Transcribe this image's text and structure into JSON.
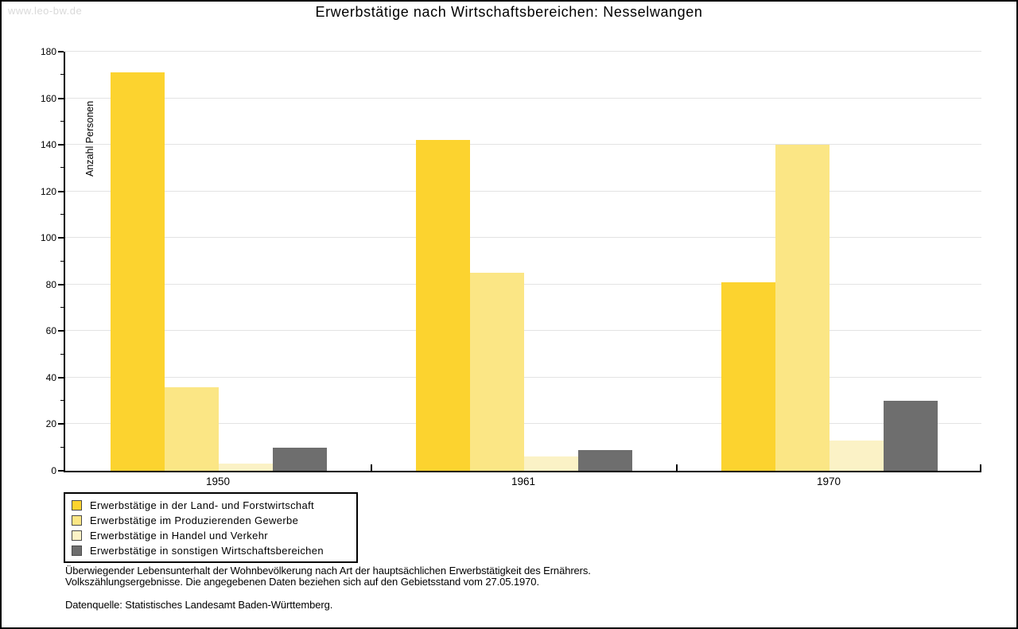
{
  "watermark": "www.leo-bw.de",
  "title": "Erwerbstätige nach Wirtschaftsbereichen: Nesselwangen",
  "chart_data": {
    "type": "bar",
    "categories": [
      "1950",
      "1961",
      "1970"
    ],
    "series": [
      {
        "name": "Erwerbstätige in der Land- und Forstwirtschaft",
        "color": "#fcd32f",
        "values": [
          171,
          142,
          81
        ]
      },
      {
        "name": "Erwerbstätige im Produzierenden Gewerbe",
        "color": "#fbe685",
        "values": [
          36,
          85,
          140
        ]
      },
      {
        "name": "Erwerbstätige in Handel und Verkehr",
        "color": "#fbf2c6",
        "values": [
          3,
          6,
          13
        ]
      },
      {
        "name": "Erwerbstätige in sonstigen Wirtschaftsbereichen",
        "color": "#6e6e6e",
        "values": [
          10,
          9,
          30
        ]
      }
    ],
    "title": "Erwerbstätige nach Wirtschaftsbereichen: Nesselwangen",
    "xlabel": "",
    "ylabel": "Anzahl Personen",
    "ylim": [
      0,
      180
    ],
    "ytick_step": 20,
    "ytick_minor_step": 10,
    "grid": true,
    "legend_position": "bottom-left",
    "grid_color": "#e3e3e3"
  },
  "footer": {
    "line1": "Überwiegender Lebensunterhalt der Wohnbevölkerung nach Art der hauptsächlichen Erwerbstätigkeit des Ernährers.",
    "line2": "Volkszählungsergebnisse. Die angegebenen Daten beziehen sich auf den Gebietsstand vom 27.05.1970.",
    "source": "Datenquelle: Statistisches Landesamt Baden-Württemberg."
  }
}
